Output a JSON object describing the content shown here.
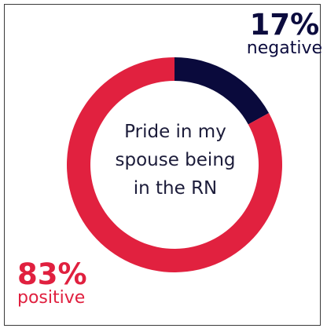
{
  "chart_data": {
    "type": "pie",
    "variant": "donut",
    "center_label_lines": [
      "Pride in my",
      "spouse being",
      "in the RN"
    ],
    "slices": [
      {
        "label": "negative",
        "value": 17,
        "display": "17%",
        "color": "#0a0a3c"
      },
      {
        "label": "positive",
        "value": 83,
        "display": "83%",
        "color": "#e1213f"
      }
    ]
  }
}
